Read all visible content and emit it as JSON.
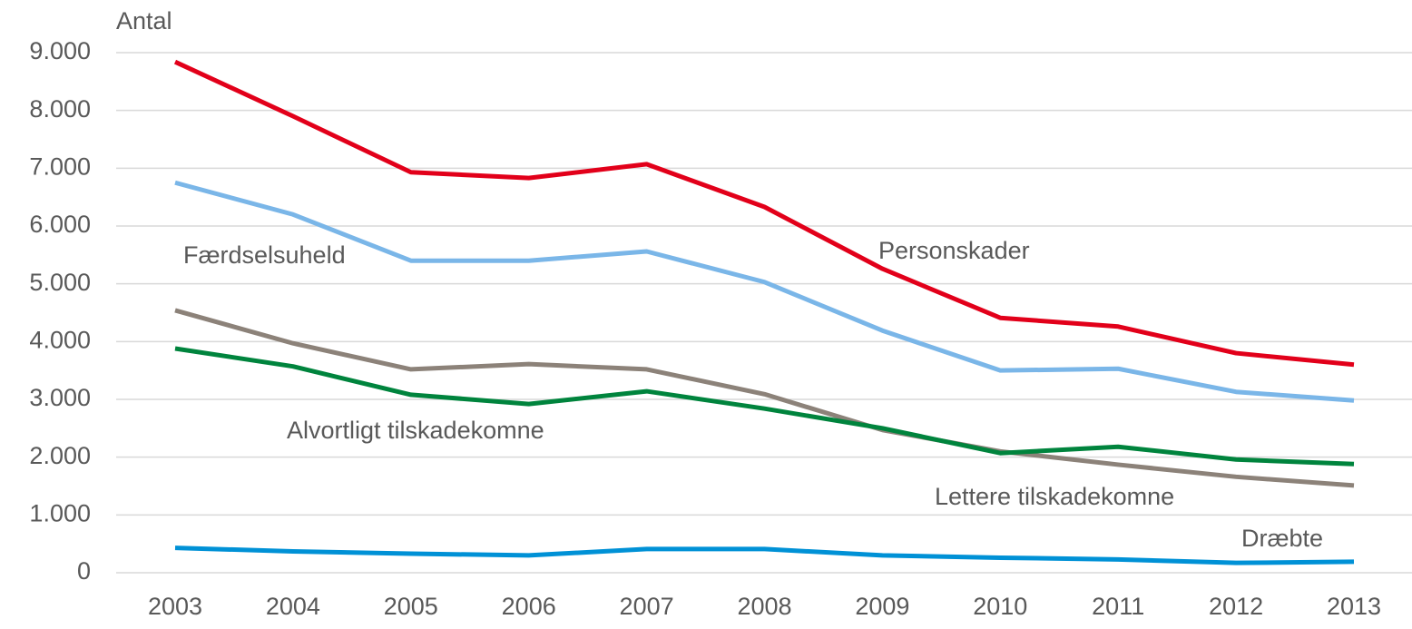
{
  "chart_data": {
    "type": "line",
    "y_label": "Antal",
    "categories": [
      "2003",
      "2004",
      "2005",
      "2006",
      "2007",
      "2008",
      "2009",
      "2010",
      "2011",
      "2012",
      "2013"
    ],
    "series": [
      {
        "name": "Personskader",
        "color": "#e2001a",
        "values": [
          8840,
          7900,
          6930,
          6830,
          7070,
          6330,
          5260,
          4410,
          4260,
          3800,
          3600
        ]
      },
      {
        "name": "Færdselsuheld",
        "color": "#7ab6e8",
        "values": [
          6750,
          6200,
          5400,
          5400,
          5560,
          5030,
          4190,
          3500,
          3530,
          3130,
          2980
        ]
      },
      {
        "name": "Lettere tilskadekomne",
        "color": "#8c8279",
        "values": [
          4540,
          3970,
          3520,
          3610,
          3520,
          3090,
          2470,
          2100,
          1870,
          1660,
          1510
        ]
      },
      {
        "name": "Alvortligt tilskadekomne",
        "color": "#00843d",
        "values": [
          3880,
          3570,
          3080,
          2920,
          3140,
          2840,
          2500,
          2070,
          2180,
          1960,
          1880
        ]
      },
      {
        "name": "Dræbte",
        "color": "#0091d6",
        "values": [
          430,
          370,
          330,
          300,
          410,
          410,
          300,
          260,
          230,
          170,
          190
        ]
      }
    ],
    "ylim": [
      0,
      9000
    ],
    "yticks": [
      0,
      {
        "value": 1000,
        "label": "1.000"
      },
      {
        "value": 2000,
        "label": "2.000"
      },
      {
        "value": 3000,
        "label": "3.000"
      },
      {
        "value": 4000,
        "label": "4.000"
      },
      {
        "value": 5000,
        "label": "5.000"
      },
      {
        "value": 6000,
        "label": "6.000"
      },
      {
        "value": 7000,
        "label": "7.000"
      },
      {
        "value": 8000,
        "label": "8.000"
      },
      {
        "value": 9000,
        "label": "9.000"
      }
    ],
    "grid": true
  }
}
